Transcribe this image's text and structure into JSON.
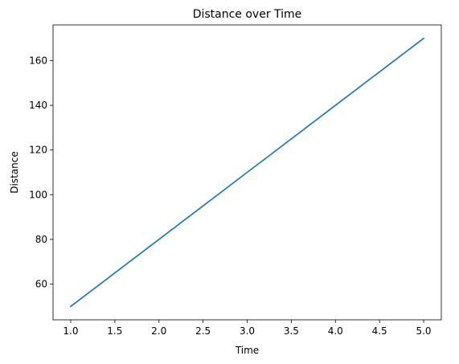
{
  "chart_data": {
    "type": "line",
    "title": "Distance over Time",
    "xlabel": "Time",
    "ylabel": "Distance",
    "xlim": [
      0.8,
      5.2
    ],
    "ylim": [
      44,
      176
    ],
    "xticks": [
      1.0,
      1.5,
      2.0,
      2.5,
      3.0,
      3.5,
      4.0,
      4.5,
      5.0
    ],
    "xtick_labels": [
      "1.0",
      "1.5",
      "2.0",
      "2.5",
      "3.0",
      "3.5",
      "4.0",
      "4.5",
      "5.0"
    ],
    "yticks": [
      60,
      80,
      100,
      120,
      140,
      160
    ],
    "ytick_labels": [
      "60",
      "80",
      "100",
      "120",
      "140",
      "160"
    ],
    "grid": false,
    "series": [
      {
        "color": "#1f77b4",
        "x": [
          1,
          2,
          3,
          4,
          5
        ],
        "y": [
          50,
          80,
          110,
          140,
          170
        ]
      }
    ]
  }
}
